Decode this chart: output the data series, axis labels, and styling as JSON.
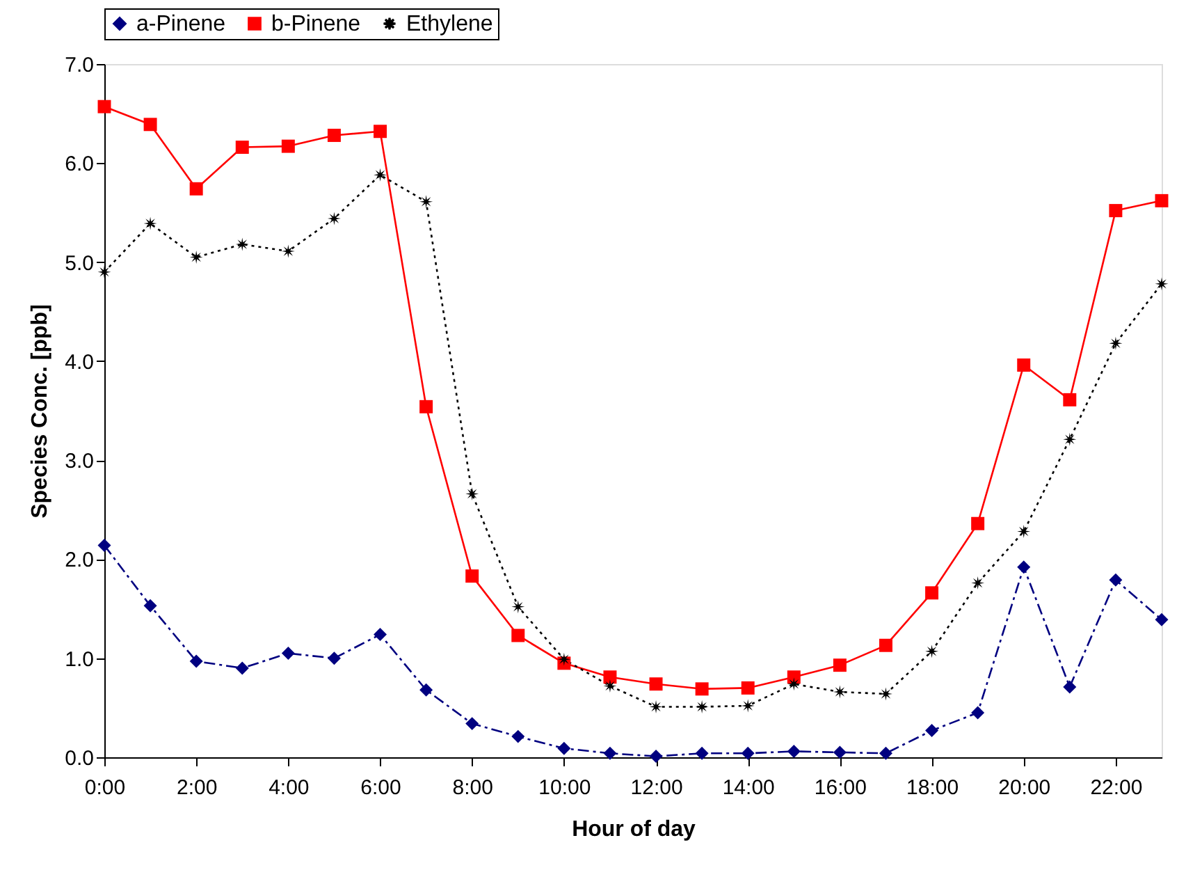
{
  "chart_data": {
    "type": "line",
    "xlabel": "Hour of day",
    "ylabel": "Species Conc. [ppb]",
    "x": [
      0,
      1,
      2,
      3,
      4,
      5,
      6,
      7,
      8,
      9,
      10,
      11,
      12,
      13,
      14,
      15,
      16,
      17,
      18,
      19,
      20,
      21,
      22,
      23
    ],
    "xlim": [
      0,
      23
    ],
    "xticks": [
      {
        "value": 0,
        "label": "0:00"
      },
      {
        "value": 2,
        "label": "2:00"
      },
      {
        "value": 4,
        "label": "4:00"
      },
      {
        "value": 6,
        "label": "6:00"
      },
      {
        "value": 8,
        "label": "8:00"
      },
      {
        "value": 10,
        "label": "10:00"
      },
      {
        "value": 12,
        "label": "12:00"
      },
      {
        "value": 14,
        "label": "14:00"
      },
      {
        "value": 16,
        "label": "16:00"
      },
      {
        "value": 18,
        "label": "18:00"
      },
      {
        "value": 20,
        "label": "20:00"
      },
      {
        "value": 22,
        "label": "22:00"
      }
    ],
    "ylim": [
      0,
      7
    ],
    "yticks": [
      {
        "value": 0,
        "label": "0.0"
      },
      {
        "value": 1,
        "label": "1.0"
      },
      {
        "value": 2,
        "label": "2.0"
      },
      {
        "value": 3,
        "label": "3.0"
      },
      {
        "value": 4,
        "label": "4.0"
      },
      {
        "value": 5,
        "label": "5.0"
      },
      {
        "value": 6,
        "label": "6.0"
      },
      {
        "value": 7,
        "label": "7.0"
      }
    ],
    "grid": false,
    "legend": "top",
    "series": [
      {
        "name": "a-Pinene",
        "color": "#000080",
        "marker": "diamond",
        "line_style": "dashed",
        "values": [
          2.14,
          1.53,
          0.97,
          0.9,
          1.05,
          1.0,
          1.24,
          0.68,
          0.34,
          0.21,
          0.09,
          0.04,
          0.01,
          0.04,
          0.04,
          0.06,
          0.05,
          0.04,
          0.27,
          0.45,
          1.92,
          0.71,
          1.79,
          1.39
        ]
      },
      {
        "name": "b-Pinene",
        "color": "#ff0000",
        "marker": "square",
        "line_style": "solid",
        "values": [
          6.57,
          6.39,
          5.74,
          6.16,
          6.17,
          6.28,
          6.32,
          3.54,
          1.83,
          1.23,
          0.95,
          0.81,
          0.74,
          0.69,
          0.7,
          0.81,
          0.93,
          1.13,
          1.66,
          2.36,
          3.96,
          3.61,
          5.52,
          5.62
        ]
      },
      {
        "name": "Ethylene",
        "color": "#000000",
        "marker": "star",
        "line_style": "dotted",
        "values": [
          4.9,
          5.39,
          5.05,
          5.18,
          5.11,
          5.44,
          5.88,
          5.61,
          2.66,
          1.52,
          0.99,
          0.72,
          0.51,
          0.51,
          0.52,
          0.74,
          0.66,
          0.64,
          1.07,
          1.76,
          2.28,
          3.21,
          4.18,
          4.78
        ]
      }
    ]
  }
}
